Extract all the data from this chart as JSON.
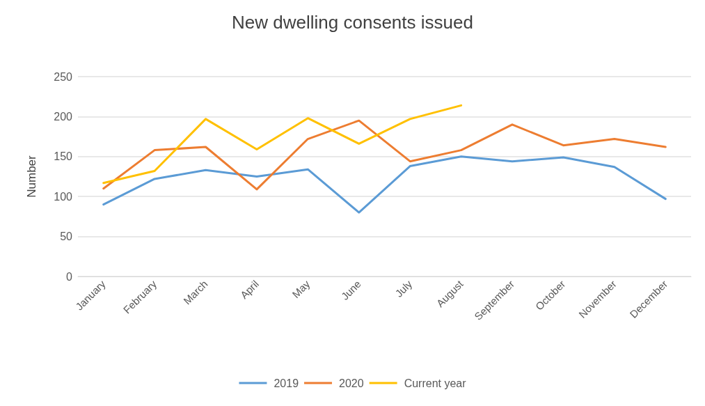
{
  "chart_data": {
    "type": "line",
    "title": "New dwelling consents issued",
    "ylabel": "Number",
    "categories": [
      "January",
      "February",
      "March",
      "April",
      "May",
      "June",
      "July",
      "August",
      "September",
      "October",
      "November",
      "December"
    ],
    "series": [
      {
        "name": "2019",
        "color": "#5b9bd5",
        "values": [
          90,
          122,
          133,
          125,
          134,
          80,
          138,
          150,
          144,
          149,
          137,
          97
        ]
      },
      {
        "name": "2020",
        "color": "#ed7d31",
        "values": [
          110,
          158,
          162,
          109,
          172,
          195,
          144,
          158,
          190,
          164,
          172,
          162
        ]
      },
      {
        "name": "Current year",
        "color": "#ffc000",
        "values": [
          117,
          132,
          197,
          159,
          198,
          166,
          197,
          214,
          null,
          null,
          null,
          null
        ]
      }
    ],
    "ylim": [
      0,
      250
    ],
    "yticks": [
      0,
      50,
      100,
      150,
      200,
      250
    ],
    "grid": "y",
    "legend": "bottom",
    "marker": "none",
    "line_style": "solid"
  }
}
